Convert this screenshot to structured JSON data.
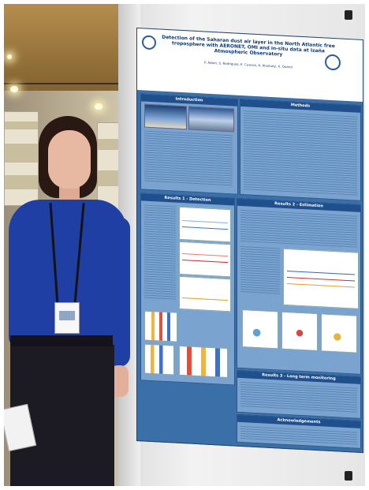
{
  "photo": {
    "description_alt": "",
    "poster": {
      "title": "Detection of the Saharan dust air layer in the North Atlantic free troposphere with AERONET, OMI and in-situ data at Izaña Atmospheric Observatory",
      "authors": "P. Adam, S. Rodriguez, E. Cuevas, A. Alastuey, X. Querol",
      "sections": {
        "introduction": "Introduction",
        "methods": "Methods",
        "results_1": "Results 1 - Detection",
        "results_2": "Results 2 - Estimation",
        "results_3": "Results 3 - Long term monitoring",
        "acknowledgements": "Acknowledgements"
      }
    },
    "colors": {
      "poster_blue": "#3a6fa8",
      "header_navy": "#1f4f8c",
      "sweater_blue": "#1f3fa4",
      "hair": "#2a1812"
    }
  }
}
